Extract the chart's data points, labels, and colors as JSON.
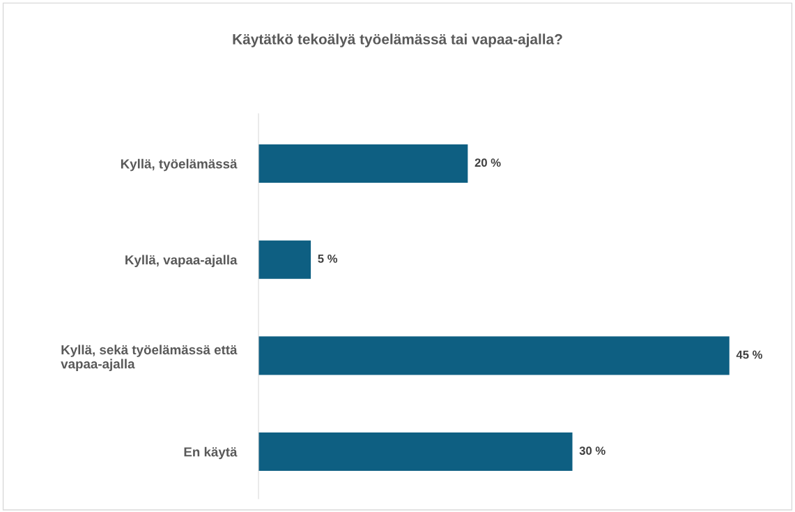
{
  "chart_data": {
    "type": "bar",
    "orientation": "horizontal",
    "title": "Käytätkö tekoälyä työelämässä tai vapaa-ajalla?",
    "categories": [
      "Kyllä, työelämässä",
      "Kyllä, vapaa-ajalla",
      "Kyllä, sekä työelämässä että\nvapaa-ajalla",
      "En käytä"
    ],
    "values": [
      20,
      5,
      45,
      30
    ],
    "value_labels": [
      "20 %",
      "5 %",
      "45 %",
      "30 %"
    ],
    "color": "#0e5f82",
    "grid": false,
    "legend": false,
    "tick_labels": "y"
  }
}
